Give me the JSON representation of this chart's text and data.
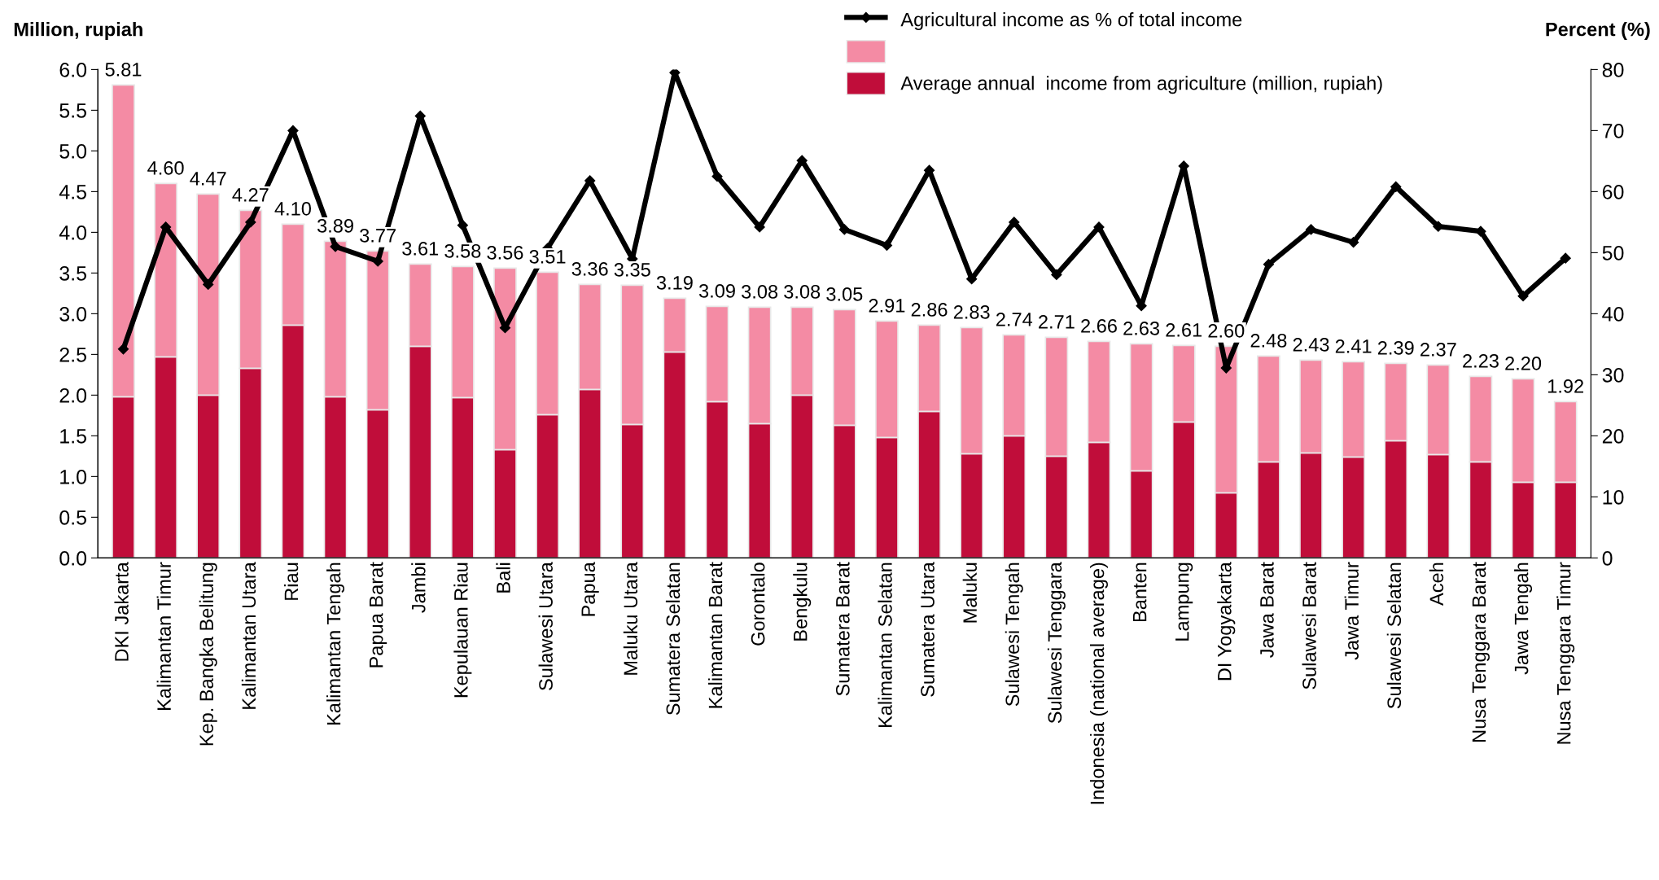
{
  "chart_data": {
    "type": "bar",
    "stacked": true,
    "ylabel": "Million, rupiah",
    "y2label": "Percent (%)",
    "categories": [
      "DKI Jakarta",
      "Kalimantan Timur",
      "Kep. Bangka Belitung",
      "Kalimantan Utara",
      "Riau",
      "Kalimantan Tengah",
      "Papua Barat",
      "Jambi",
      "Kepulauan Riau",
      "Bali",
      "Sulawesi Utara",
      "Papua",
      "Maluku Utara",
      "Sumatera Selatan",
      "Kalimantan Barat",
      "Gorontalo",
      "Bengkulu",
      "Sumatera Barat",
      "Kalimantan Selatan",
      "Sumatera Utara",
      "Maluku",
      "Sulawesi Tengah",
      "Sulawesi Tenggara",
      "Indonesia (national average)",
      "Banten",
      "Lampung",
      "DI Yogyakarta",
      "Jawa Barat",
      "Sulawesi Barat",
      "Jawa Timur",
      "Sulawesi Selatan",
      "Aceh",
      "Nusa Tenggara Barat",
      "Jawa Tengah",
      "Nusa Tenggara Timur"
    ],
    "series": [
      {
        "name": "Average annual  income from agriculture (million, rupiah)",
        "color": "#c00d3a",
        "values": [
          1.98,
          2.47,
          2.0,
          2.33,
          2.86,
          1.98,
          1.82,
          2.6,
          1.97,
          1.33,
          1.76,
          2.07,
          1.64,
          2.53,
          1.92,
          1.65,
          2.0,
          1.63,
          1.48,
          1.8,
          1.28,
          1.5,
          1.25,
          1.42,
          1.07,
          1.67,
          0.8,
          1.18,
          1.29,
          1.24,
          1.44,
          1.27,
          1.18,
          0.93,
          0.93
        ]
      },
      {
        "color": "#f48ba4",
        "values": [
          3.83,
          2.13,
          2.47,
          1.94,
          1.24,
          1.91,
          1.95,
          1.01,
          1.61,
          2.23,
          1.75,
          1.29,
          1.71,
          0.66,
          1.17,
          1.43,
          1.08,
          1.42,
          1.43,
          1.06,
          1.55,
          1.24,
          1.46,
          1.24,
          1.56,
          0.94,
          1.8,
          1.3,
          1.14,
          1.17,
          0.95,
          1.1,
          1.05,
          1.27,
          0.99
        ]
      },
      {
        "name": "Agricultural income as % of total income",
        "type": "line",
        "axis": "y2",
        "color": "#000000",
        "marker": "diamond",
        "line_style": "solid",
        "values": [
          34.2,
          54.2,
          44.8,
          55.0,
          70.0,
          51.0,
          48.6,
          72.4,
          54.5,
          37.7,
          50.7,
          61.8,
          49.0,
          79.5,
          62.5,
          54.2,
          65.1,
          53.8,
          51.2,
          63.5,
          45.7,
          55.0,
          46.4,
          54.2,
          41.3,
          64.2,
          31.1,
          48.1,
          53.8,
          51.7,
          60.8,
          54.3,
          53.5,
          42.9,
          49.1
        ]
      }
    ],
    "totals": [
      "5.81",
      "4.60",
      "4.47",
      "4.27",
      "4.10",
      "3.89",
      "3.77",
      "3.61",
      "3.58",
      "3.56",
      "3.51",
      "3.36",
      "3.35",
      "3.19",
      "3.09",
      "3.08",
      "3.08",
      "3.05",
      "2.91",
      "2.86",
      "2.83",
      "2.74",
      "2.71",
      "2.66",
      "2.63",
      "2.61",
      "2.60",
      "2.48",
      "2.43",
      "2.41",
      "2.39",
      "2.37",
      "2.23",
      "2.20",
      "1.92"
    ],
    "ylim": [
      0,
      6
    ],
    "yticks": [
      {
        "value": 0,
        "label": "0.0"
      },
      {
        "value": 0.5,
        "label": "0.5"
      },
      {
        "value": 1,
        "label": "1.0"
      },
      {
        "value": 1.5,
        "label": "1.5"
      },
      {
        "value": 2,
        "label": "2.0"
      },
      {
        "value": 2.5,
        "label": "2.5"
      },
      {
        "value": 3,
        "label": "3.0"
      },
      {
        "value": 3.5,
        "label": "3.5"
      },
      {
        "value": 4,
        "label": "4.0"
      },
      {
        "value": 4.5,
        "label": "4.5"
      },
      {
        "value": 5,
        "label": "5.0"
      },
      {
        "value": 5.5,
        "label": "5.5"
      },
      {
        "value": 6,
        "label": "6.0"
      }
    ],
    "y2lim": [
      0,
      80
    ],
    "y2ticks": [
      0,
      10,
      20,
      30,
      40,
      50,
      60,
      70,
      80
    ],
    "grid": false,
    "legend": "top"
  }
}
